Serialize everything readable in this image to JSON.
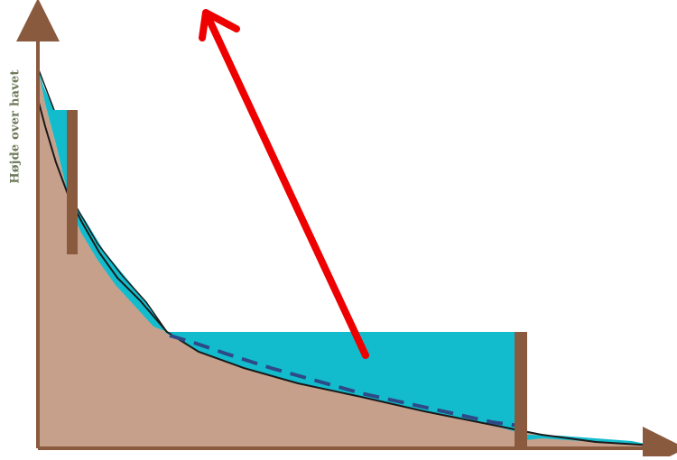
{
  "diagram": {
    "y_axis_label": "Højde over havet",
    "colors": {
      "terrain": "#c7a08c",
      "terrain_edge": "#1a1a1a",
      "water": "#12bccd",
      "dam": "#8a5a3f",
      "axis": "#8a5a3f",
      "flow_line": "#2e4a86",
      "arrow": "#ee0000"
    },
    "elements": [
      "terrain",
      "upper-reservoir",
      "lower-reservoir",
      "upper-dam",
      "lower-dam",
      "dashed-flow-line",
      "red-arrow",
      "x-axis",
      "y-axis"
    ]
  }
}
